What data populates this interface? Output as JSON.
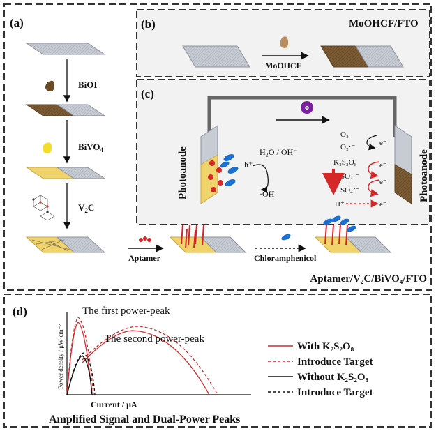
{
  "panels": {
    "a": {
      "label": "(a)",
      "steps": [
        "BiOI",
        "BiVO",
        "V",
        "C"
      ],
      "bivo_sub": "4",
      "v2c_sub": "2"
    },
    "b": {
      "label": "(b)",
      "title": "MoOHCF/FTO",
      "arrow_label": "MoOHCF"
    },
    "c": {
      "label": "(c)",
      "electron": "e",
      "photoanode_left": "Photoanode",
      "photoanode_right": "Photoanode",
      "h2o": "H₂O / OH⁻",
      "hplus": "h⁺",
      "oh": "·OH",
      "o2": "O₂",
      "o2minus": "O₂·⁻",
      "k2s2o8": "K₂S₂O₈",
      "so4radical": "SO₄·⁻",
      "so4": "SO₄²⁻",
      "hplus2": "H⁺",
      "eminus": "e⁻"
    },
    "bottom_row": {
      "aptamer": "Aptamer",
      "chloramphenicol": "Chloramphenicol",
      "final_label": "Aptamer/V₂C/BiVO₄/FTO"
    },
    "d": {
      "label": "(d)",
      "peak1": "The first power-peak",
      "peak2": "The second power-peak",
      "ylabel": "Power density / μW·cm⁻²",
      "xlabel": "Current / μA",
      "footer": "Amplified Signal and Dual-Power Peaks",
      "legend": [
        {
          "text": "With K₂S₂O₈",
          "color": "#d62728",
          "dash": false
        },
        {
          "text": "Introduce Target",
          "color": "#d62728",
          "dash": true
        },
        {
          "text": "Without K₂S₂O₈",
          "color": "#111111",
          "dash": false
        },
        {
          "text": "Introduce Target",
          "color": "#111111",
          "dash": true
        }
      ]
    }
  },
  "colors": {
    "gray_slide": "#c7cbd3",
    "brown": "#7b5b34",
    "yellow": "#f0d36a",
    "red": "#d62728",
    "blue": "#1a6fd1",
    "purple": "#7a1fa2"
  }
}
